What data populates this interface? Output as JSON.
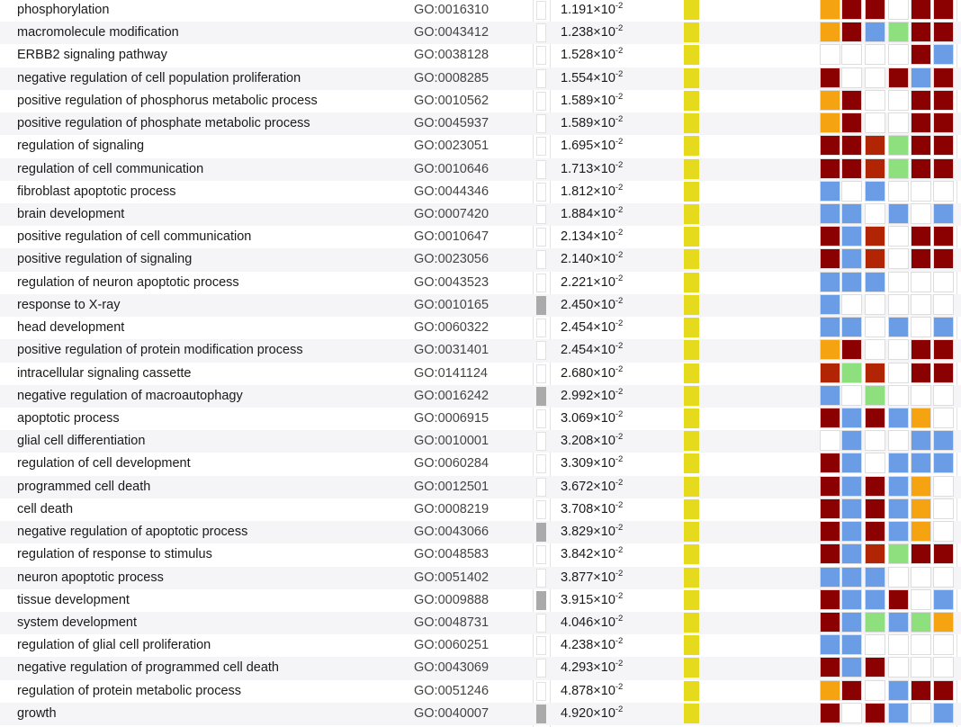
{
  "colors": {
    "0": "#ffffff",
    "D": "#8b0000",
    "B": "#6a9de5",
    "O": "#f6a312",
    "G": "#8ee07e",
    "R": "#b12504",
    "yellow_bar": "#e5da1b",
    "gray_bar": "#aaaaaa"
  },
  "rows": [
    {
      "term": "phosphorylation",
      "go_id": "GO:0016310",
      "pval_mantissa": "1.191×10",
      "pval_exp": "-2",
      "gray_bar": false,
      "pattern": "ODD0DD"
    },
    {
      "term": "macromolecule modification",
      "go_id": "GO:0043412",
      "pval_mantissa": "1.238×10",
      "pval_exp": "-2",
      "gray_bar": false,
      "pattern": "ODBGDD"
    },
    {
      "term": "ERBB2 signaling pathway",
      "go_id": "GO:0038128",
      "pval_mantissa": "1.528×10",
      "pval_exp": "-2",
      "gray_bar": false,
      "pattern": "0000DB"
    },
    {
      "term": "negative regulation of cell population proliferation",
      "go_id": "GO:0008285",
      "pval_mantissa": "1.554×10",
      "pval_exp": "-2",
      "gray_bar": false,
      "pattern": "D00DBD"
    },
    {
      "term": "positive regulation of phosphorus metabolic process",
      "go_id": "GO:0010562",
      "pval_mantissa": "1.589×10",
      "pval_exp": "-2",
      "gray_bar": false,
      "pattern": "OD00DD"
    },
    {
      "term": "positive regulation of phosphate metabolic process",
      "go_id": "GO:0045937",
      "pval_mantissa": "1.589×10",
      "pval_exp": "-2",
      "gray_bar": false,
      "pattern": "OD00DD"
    },
    {
      "term": "regulation of signaling",
      "go_id": "GO:0023051",
      "pval_mantissa": "1.695×10",
      "pval_exp": "-2",
      "gray_bar": false,
      "pattern": "DDRGDD"
    },
    {
      "term": "regulation of cell communication",
      "go_id": "GO:0010646",
      "pval_mantissa": "1.713×10",
      "pval_exp": "-2",
      "gray_bar": false,
      "pattern": "DDRGDD"
    },
    {
      "term": "fibroblast apoptotic process",
      "go_id": "GO:0044346",
      "pval_mantissa": "1.812×10",
      "pval_exp": "-2",
      "gray_bar": false,
      "pattern": "B0B000"
    },
    {
      "term": "brain development",
      "go_id": "GO:0007420",
      "pval_mantissa": "1.884×10",
      "pval_exp": "-2",
      "gray_bar": false,
      "pattern": "BB0B0B"
    },
    {
      "term": "positive regulation of cell communication",
      "go_id": "GO:0010647",
      "pval_mantissa": "2.134×10",
      "pval_exp": "-2",
      "gray_bar": false,
      "pattern": "DBR0DD"
    },
    {
      "term": "positive regulation of signaling",
      "go_id": "GO:0023056",
      "pval_mantissa": "2.140×10",
      "pval_exp": "-2",
      "gray_bar": false,
      "pattern": "DBR0DD"
    },
    {
      "term": "regulation of neuron apoptotic process",
      "go_id": "GO:0043523",
      "pval_mantissa": "2.221×10",
      "pval_exp": "-2",
      "gray_bar": false,
      "pattern": "BBB000"
    },
    {
      "term": "response to X-ray",
      "go_id": "GO:0010165",
      "pval_mantissa": "2.450×10",
      "pval_exp": "-2",
      "gray_bar": true,
      "pattern": "B00000"
    },
    {
      "term": "head development",
      "go_id": "GO:0060322",
      "pval_mantissa": "2.454×10",
      "pval_exp": "-2",
      "gray_bar": false,
      "pattern": "BB0B0B"
    },
    {
      "term": "positive regulation of protein modification process",
      "go_id": "GO:0031401",
      "pval_mantissa": "2.454×10",
      "pval_exp": "-2",
      "gray_bar": false,
      "pattern": "OD00DD"
    },
    {
      "term": "intracellular signaling cassette",
      "go_id": "GO:0141124",
      "pval_mantissa": "2.680×10",
      "pval_exp": "-2",
      "gray_bar": false,
      "pattern": "RGR0DD"
    },
    {
      "term": "negative regulation of macroautophagy",
      "go_id": "GO:0016242",
      "pval_mantissa": "2.992×10",
      "pval_exp": "-2",
      "gray_bar": true,
      "pattern": "B0G000"
    },
    {
      "term": "apoptotic process",
      "go_id": "GO:0006915",
      "pval_mantissa": "3.069×10",
      "pval_exp": "-2",
      "gray_bar": false,
      "pattern": "DBDBO0"
    },
    {
      "term": "glial cell differentiation",
      "go_id": "GO:0010001",
      "pval_mantissa": "3.208×10",
      "pval_exp": "-2",
      "gray_bar": false,
      "pattern": "0B00BB"
    },
    {
      "term": "regulation of cell development",
      "go_id": "GO:0060284",
      "pval_mantissa": "3.309×10",
      "pval_exp": "-2",
      "gray_bar": false,
      "pattern": "DB0BBB"
    },
    {
      "term": "programmed cell death",
      "go_id": "GO:0012501",
      "pval_mantissa": "3.672×10",
      "pval_exp": "-2",
      "gray_bar": false,
      "pattern": "DBDBO0"
    },
    {
      "term": "cell death",
      "go_id": "GO:0008219",
      "pval_mantissa": "3.708×10",
      "pval_exp": "-2",
      "gray_bar": false,
      "pattern": "DBDBO0"
    },
    {
      "term": "negative regulation of apoptotic process",
      "go_id": "GO:0043066",
      "pval_mantissa": "3.829×10",
      "pval_exp": "-2",
      "gray_bar": true,
      "pattern": "DBDBO0"
    },
    {
      "term": "regulation of response to stimulus",
      "go_id": "GO:0048583",
      "pval_mantissa": "3.842×10",
      "pval_exp": "-2",
      "gray_bar": false,
      "pattern": "DBRGDD"
    },
    {
      "term": "neuron apoptotic process",
      "go_id": "GO:0051402",
      "pval_mantissa": "3.877×10",
      "pval_exp": "-2",
      "gray_bar": false,
      "pattern": "BBB000"
    },
    {
      "term": "tissue development",
      "go_id": "GO:0009888",
      "pval_mantissa": "3.915×10",
      "pval_exp": "-2",
      "gray_bar": true,
      "pattern": "DBBD0B"
    },
    {
      "term": "system development",
      "go_id": "GO:0048731",
      "pval_mantissa": "4.046×10",
      "pval_exp": "-2",
      "gray_bar": false,
      "pattern": "DBGBGO"
    },
    {
      "term": "regulation of glial cell proliferation",
      "go_id": "GO:0060251",
      "pval_mantissa": "4.238×10",
      "pval_exp": "-2",
      "gray_bar": false,
      "pattern": "BB0000"
    },
    {
      "term": "negative regulation of programmed cell death",
      "go_id": "GO:0043069",
      "pval_mantissa": "4.293×10",
      "pval_exp": "-2",
      "gray_bar": false,
      "pattern": "DBD000"
    },
    {
      "term": "regulation of protein metabolic process",
      "go_id": "GO:0051246",
      "pval_mantissa": "4.878×10",
      "pval_exp": "-2",
      "gray_bar": false,
      "pattern": "OD0BDD"
    },
    {
      "term": "growth",
      "go_id": "GO:0040007",
      "pval_mantissa": "4.920×10",
      "pval_exp": "-2",
      "gray_bar": true,
      "pattern": "D0DB0B"
    }
  ]
}
